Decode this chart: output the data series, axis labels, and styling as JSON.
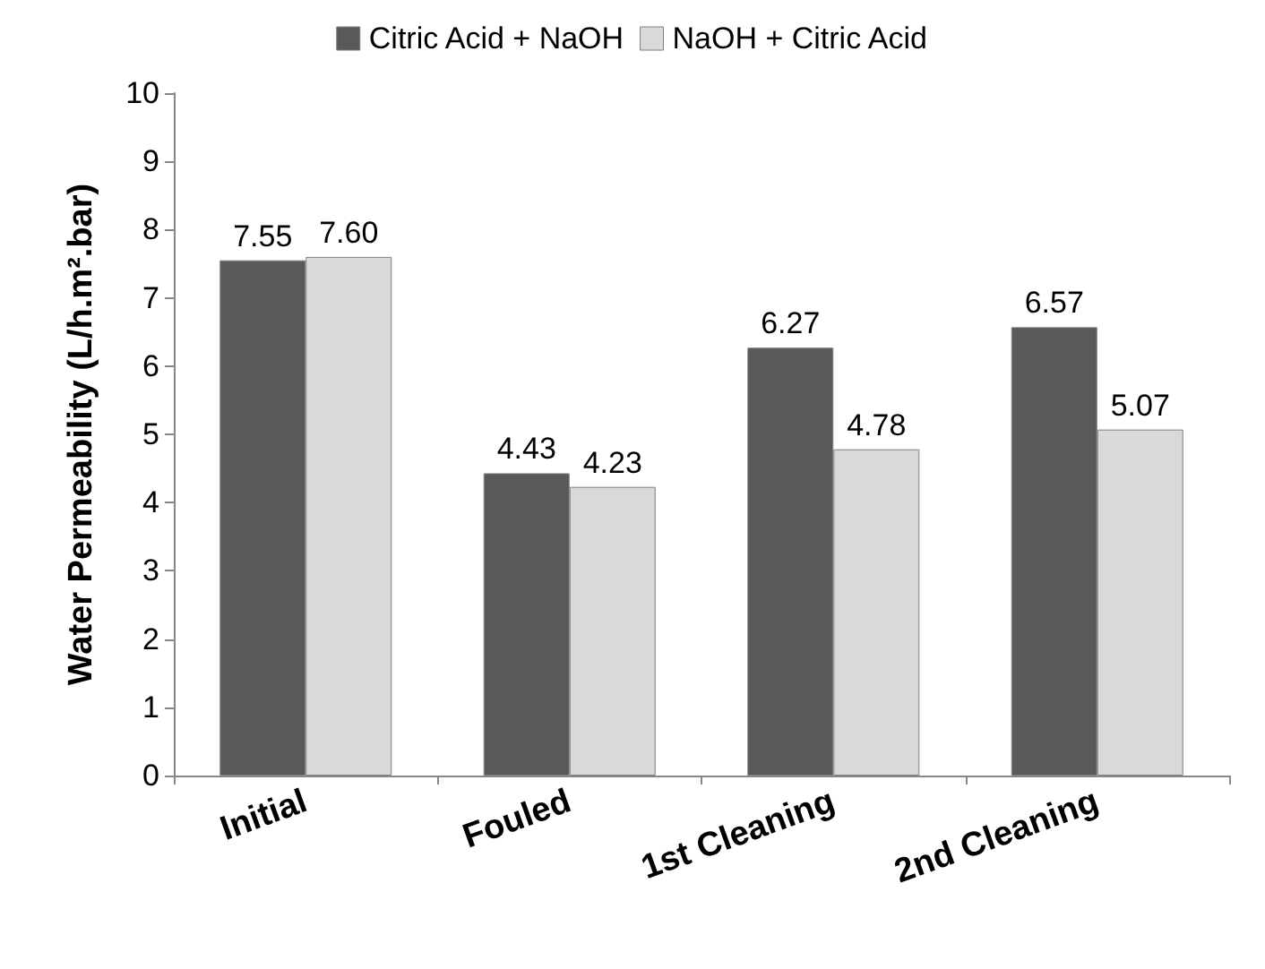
{
  "chart_data": {
    "type": "bar",
    "ylabel": "Water Permeability (L/h.m².bar)",
    "categories": [
      "Initial",
      "Fouled",
      "1st Cleaning",
      "2nd Cleaning"
    ],
    "series": [
      {
        "name": "Citric Acid + NaOH",
        "color": "#595959",
        "values": [
          7.55,
          4.43,
          6.27,
          6.57
        ],
        "value_labels": [
          "7.55",
          "4.43",
          "6.27",
          "6.57"
        ]
      },
      {
        "name": "NaOH + Citric Acid",
        "color": "#d9d9d9",
        "values": [
          7.6,
          4.23,
          4.78,
          5.07
        ],
        "value_labels": [
          "7.60",
          "4.23",
          "4.78",
          "5.07"
        ]
      }
    ],
    "ylim": [
      0,
      10
    ],
    "yticks": [
      0,
      1,
      2,
      3,
      4,
      5,
      6,
      7,
      8,
      9,
      10
    ],
    "grid": false,
    "legend": "top"
  }
}
